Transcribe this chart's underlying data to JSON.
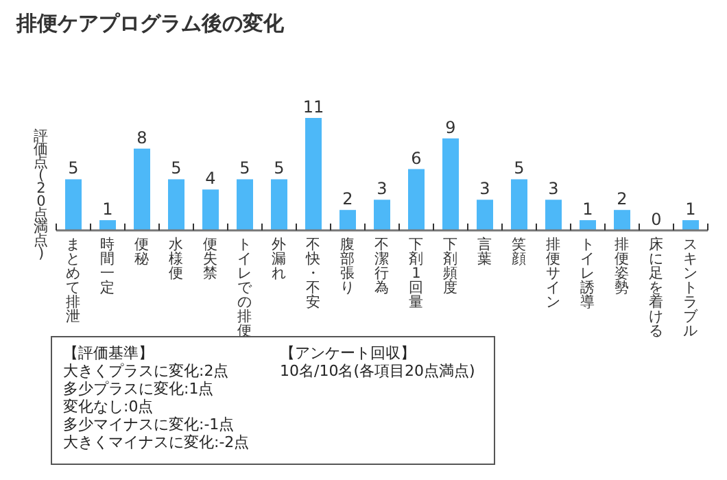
{
  "chart_data": {
    "type": "bar",
    "title": "排便ケアプログラム後の変化",
    "ylabel": "評価点(20点満点)",
    "categories": [
      "まとめて排泄",
      "時間一定",
      "便秘",
      "水様便",
      "便失禁",
      "トイレでの排便",
      "外漏れ",
      "不快・不安",
      "腹部張り",
      "不潔行為",
      "下剤1回量",
      "下剤頻度",
      "言葉",
      "笑顔",
      "排便サイン",
      "トイレ誘導",
      "排便姿勢",
      "床に足を着ける",
      "スキントラブル"
    ],
    "values": [
      5,
      1,
      8,
      5,
      4,
      5,
      5,
      11,
      2,
      3,
      6,
      9,
      3,
      5,
      3,
      1,
      2,
      0,
      1
    ],
    "color": "#4db8f8",
    "data_labels": true,
    "annotations": [
      "【評価基準】",
      "大きくプラスに変化:2点",
      "多少プラスに変化:1点",
      "変化なし:0点",
      "多少マイナスに変化:-1点",
      "大きくマイナスに変化:-2点",
      "【アンケート回収】",
      "10名/10名(各項目20点満点)"
    ]
  }
}
